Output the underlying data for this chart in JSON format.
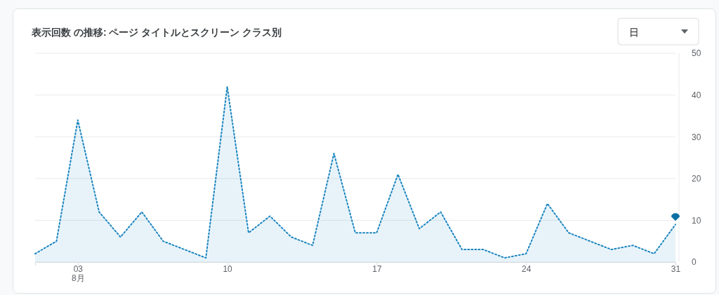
{
  "chart_data": {
    "type": "area",
    "title": "表示回数 の推移: ページ タイトルとスクリーン クラス別",
    "x": [
      "--08-01",
      "--08-02",
      "--08-03",
      "--08-04",
      "--08-05",
      "--08-06",
      "--08-07",
      "--08-08",
      "--08-09",
      "--08-10",
      "--08-11",
      "--08-12",
      "--08-13",
      "--08-14",
      "--08-15",
      "--08-16",
      "--08-17",
      "--08-18",
      "--08-19",
      "--08-20",
      "--08-21",
      "--08-22",
      "--08-23",
      "--08-24",
      "--08-25",
      "--08-26",
      "--08-27",
      "--08-28",
      "--08-29",
      "--08-30",
      "--08-31"
    ],
    "series": [
      {
        "color": "#1a85c0",
        "values": [
          2,
          5,
          34,
          12,
          6,
          12,
          5,
          3,
          1,
          42,
          7,
          11,
          6,
          4,
          26,
          7,
          7,
          21,
          8,
          12,
          3,
          3,
          1,
          2,
          14,
          7,
          5,
          3,
          4,
          2,
          9
        ]
      }
    ],
    "xlim": [
      "--08-01",
      "--08-31"
    ],
    "xticks": [
      {
        "value": "--08-03",
        "label": "03\n8月"
      },
      {
        "value": "--08-10",
        "label": "10"
      },
      {
        "value": "--08-17",
        "label": "17"
      },
      {
        "value": "--08-24",
        "label": "24"
      },
      {
        "value": "--08-31",
        "label": "31"
      }
    ],
    "ylim": [
      0,
      50
    ],
    "yticks": [
      0,
      10,
      20,
      30,
      40,
      50
    ],
    "grid": "y",
    "line_style": "dotted",
    "marker": "none",
    "annotations": [
      "日"
    ]
  }
}
